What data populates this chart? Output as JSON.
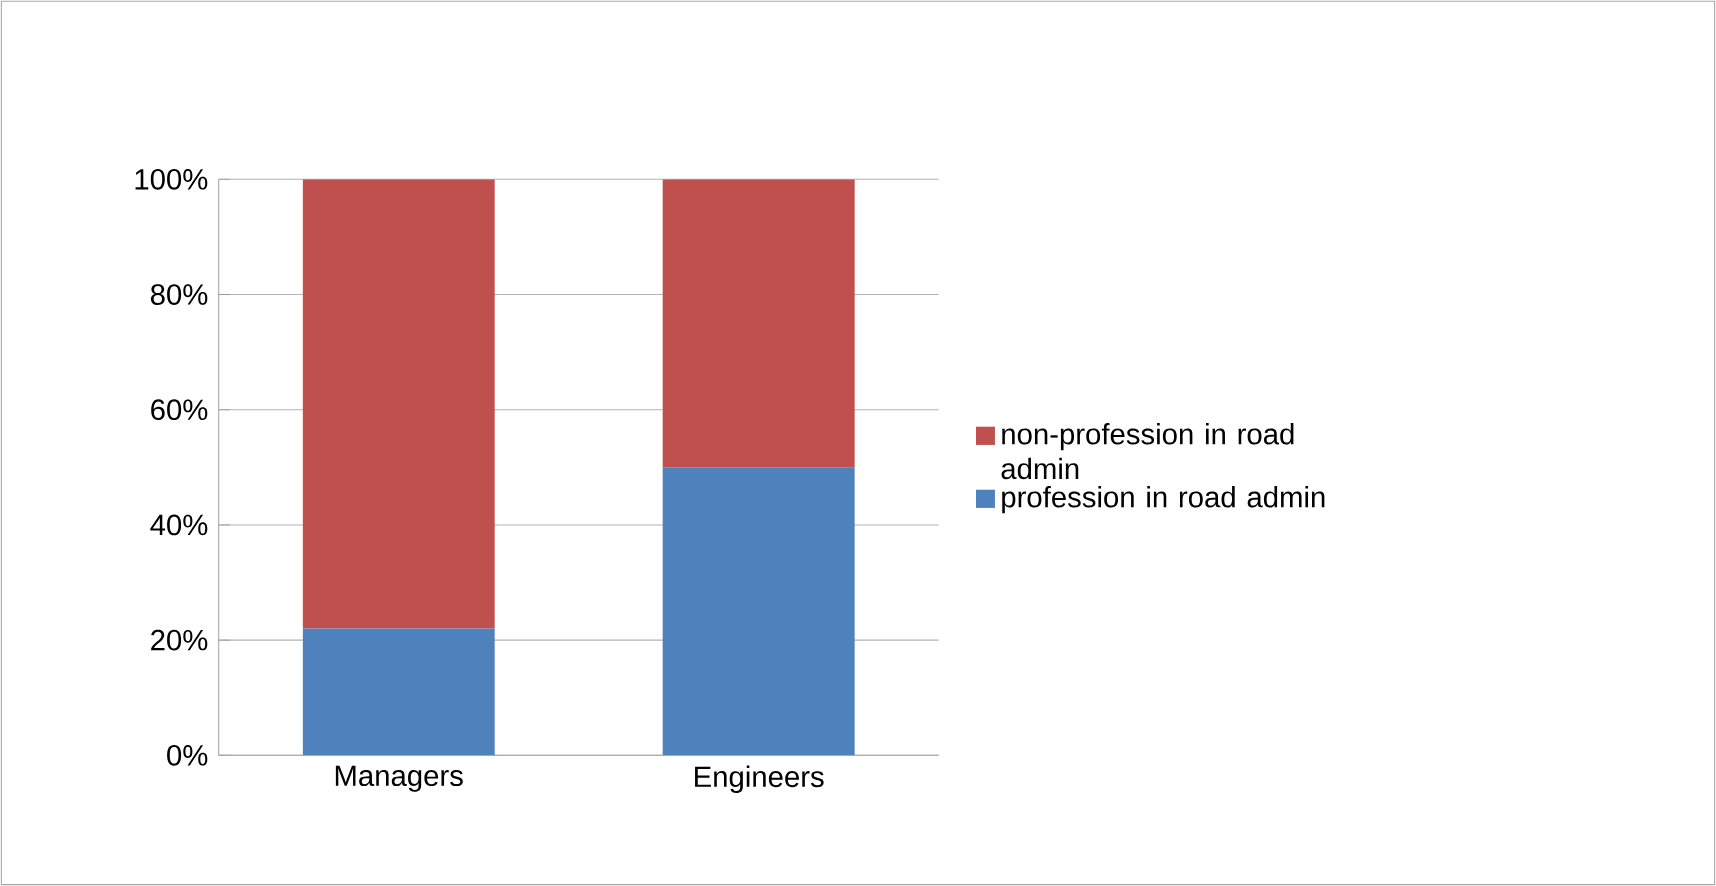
{
  "chart_data": {
    "type": "bar",
    "stacked": true,
    "categories": [
      "Managers",
      "Engineers"
    ],
    "series": [
      {
        "name": "profession in road admin",
        "color": "#4f81bd",
        "values": [
          22,
          50
        ]
      },
      {
        "name": "non-profession in road admin",
        "color": "#c0504d",
        "values": [
          78,
          50
        ]
      }
    ],
    "ylim": [
      0,
      100
    ],
    "yticks": [
      {
        "value": 0,
        "label": "0%"
      },
      {
        "value": 20,
        "label": "20%"
      },
      {
        "value": 40,
        "label": "40%"
      },
      {
        "value": 60,
        "label": "60%"
      },
      {
        "value": 80,
        "label": "80%"
      },
      {
        "value": 100,
        "label": "100%"
      }
    ],
    "grid": "y",
    "legend": "right"
  }
}
